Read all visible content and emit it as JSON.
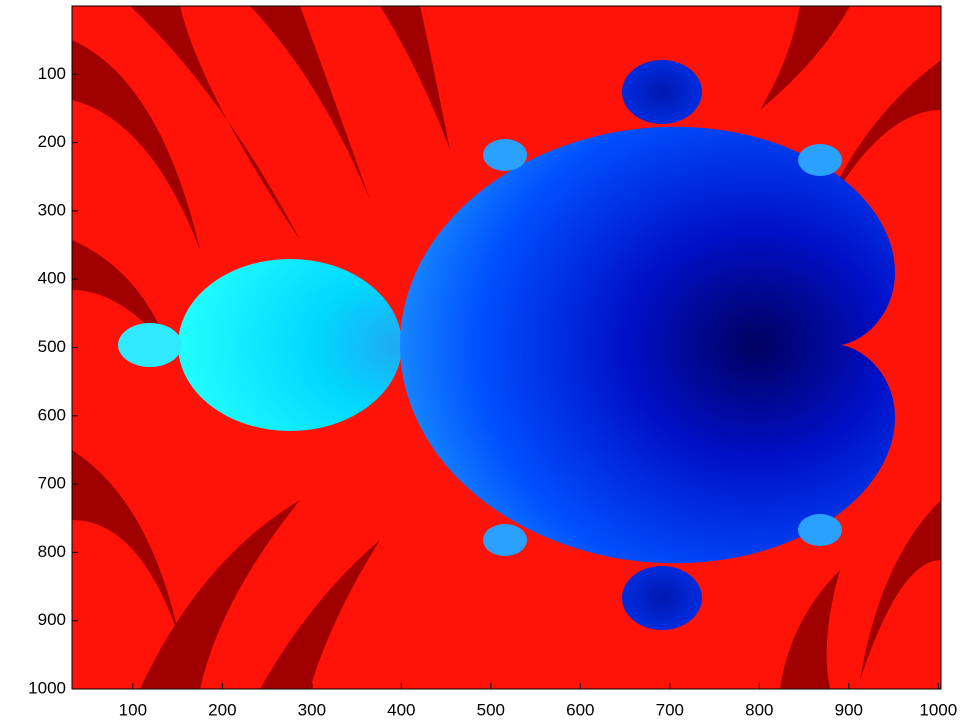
{
  "chart_data": {
    "type": "image",
    "xlim": [
      32,
      1003
    ],
    "ylim": [
      0,
      1000
    ],
    "y_reversed": true,
    "xticks": [
      100,
      200,
      300,
      400,
      500,
      600,
      700,
      800,
      900,
      1000
    ],
    "yticks": [
      100,
      200,
      300,
      400,
      500,
      600,
      700,
      800,
      900,
      1000
    ]
  }
}
